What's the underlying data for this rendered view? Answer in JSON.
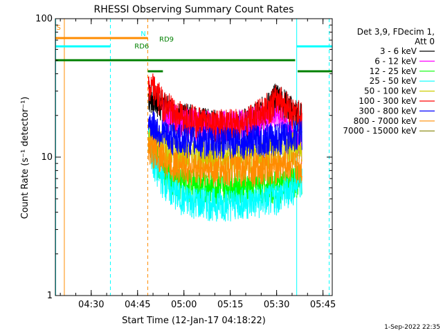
{
  "chart_data": {
    "type": "line",
    "title": "RHESSI Observing Summary Count Rates",
    "xlabel": "Start Time (12-Jan-17 04:18:22)",
    "ylabel": "Count Rate (s⁻¹ detector⁻¹)",
    "yscale": "log",
    "ylim": [
      1,
      100
    ],
    "xlim_min": [
      18.4,
      108
    ],
    "y_ticks": [
      "1",
      "10",
      "100"
    ],
    "x_ticks": [
      {
        "t": 30,
        "label": "04:30"
      },
      {
        "t": 45,
        "label": "04:45"
      },
      {
        "t": 60,
        "label": "05:00"
      },
      {
        "t": 75,
        "label": "05:15"
      },
      {
        "t": 90,
        "label": "05:30"
      },
      {
        "t": 105,
        "label": "05:45"
      }
    ],
    "legend_header": [
      "Det 3,9, FDecim 1,",
      "Att 0"
    ],
    "series": [
      {
        "name": "3 - 6 keV",
        "color": "#000000",
        "x": [
          48.5,
          53,
          57,
          62,
          67,
          72,
          77,
          82,
          87,
          90.5,
          93,
          95.5,
          97.5,
          98.2
        ],
        "y": [
          28,
          24,
          20,
          19,
          18,
          17,
          17,
          18.5,
          23,
          28,
          24,
          21,
          20,
          19
        ]
      },
      {
        "name": "6 - 12 keV",
        "color": "#ff00ff",
        "x": [
          53,
          60,
          70,
          80,
          85,
          90,
          93,
          96,
          98.2
        ],
        "y": [
          21,
          18,
          17,
          17.5,
          19,
          21,
          18,
          14,
          12
        ]
      },
      {
        "name": "12 - 25 keV",
        "color": "#00ff00",
        "x": [
          48.5,
          50,
          53,
          56,
          60,
          65,
          70,
          75,
          80,
          85,
          90,
          95,
          98.2
        ],
        "y": [
          15,
          11,
          8,
          7,
          6.6,
          6.4,
          6.2,
          6.3,
          6.3,
          6.3,
          6.3,
          6.6,
          7.2
        ]
      },
      {
        "name": "25 - 50 keV",
        "color": "#00ffff",
        "x": [
          48.5,
          50,
          53,
          56,
          60,
          65,
          70,
          75,
          80,
          85,
          90,
          95,
          98.2
        ],
        "y": [
          14,
          9,
          7,
          5.8,
          5,
          4.8,
          4.7,
          4.7,
          4.8,
          4.9,
          5.2,
          6,
          7
        ]
      },
      {
        "name": "50 - 100 keV",
        "color": "#cccc00",
        "x": [
          48.5,
          53,
          56,
          60,
          65,
          70,
          75,
          80,
          85,
          90,
          95,
          98.2
        ],
        "y": [
          15,
          12,
          11,
          10.5,
          10.3,
          10.2,
          10.3,
          10.5,
          11,
          11.5,
          12,
          12
        ]
      },
      {
        "name": "100 - 300 keV",
        "color": "#ff0000",
        "x": [
          48.5,
          50,
          53,
          57,
          62,
          67,
          72,
          77,
          82,
          87,
          90.5,
          93,
          95.5,
          98.2
        ],
        "y": [
          30,
          32,
          25,
          21,
          19,
          18,
          17.5,
          17.5,
          19,
          23,
          27,
          24,
          21,
          20
        ]
      },
      {
        "name": "300 - 800 keV",
        "color": "#0000ff",
        "x": [
          48.5,
          53,
          56,
          60,
          65,
          70,
          75,
          80,
          85,
          90,
          95,
          98.2
        ],
        "y": [
          18,
          15,
          14,
          13.5,
          13.2,
          13,
          13,
          13.2,
          13.5,
          14,
          14.5,
          15
        ]
      },
      {
        "name": "800 - 7000 keV",
        "color": "#ff8c00",
        "x": [
          48.5,
          53,
          56,
          60,
          65,
          70,
          75,
          80,
          85,
          90,
          95,
          98.2
        ],
        "y": [
          12,
          10,
          9,
          8.6,
          8.3,
          8.2,
          8.2,
          8.3,
          8.5,
          8.7,
          8.8,
          8.5
        ]
      },
      {
        "name": "7000 - 15000 keV",
        "color": "#808000",
        "x": [],
        "y": []
      }
    ],
    "flag_bars": [
      {
        "label": "S",
        "color": "#ff8c00",
        "y_frac": 0.93,
        "spans": [
          [
            18.4,
            48.2
          ]
        ]
      },
      {
        "label": "N",
        "color": "#00ffff",
        "y_frac": 0.9,
        "spans": [
          [
            18.4,
            36.2
          ],
          [
            96.5,
            108
          ]
        ]
      },
      {
        "label": "RD9",
        "color": "#008000",
        "y_frac": 0.85,
        "spans": [
          [
            18.4,
            96
          ]
        ]
      },
      {
        "label": "RD6",
        "color": "#008000",
        "y_frac": 0.81,
        "spans": [
          [
            48.3,
            53.2
          ],
          [
            96.8,
            108
          ]
        ]
      }
    ],
    "vlines": [
      {
        "t": 18.5,
        "color": "#00ffff",
        "style": "solid"
      },
      {
        "t": 21.3,
        "color": "#ff8c00",
        "style": "solid"
      },
      {
        "t": 36.2,
        "color": "#00ffff",
        "style": "dashed"
      },
      {
        "t": 48.3,
        "color": "#ff8c00",
        "style": "dashed"
      },
      {
        "t": 96.5,
        "color": "#00ffff",
        "style": "solid"
      },
      {
        "t": 107.0,
        "color": "#00ffff",
        "style": "dashed"
      }
    ]
  },
  "footer_timestamp": "1-Sep-2022 22:35"
}
